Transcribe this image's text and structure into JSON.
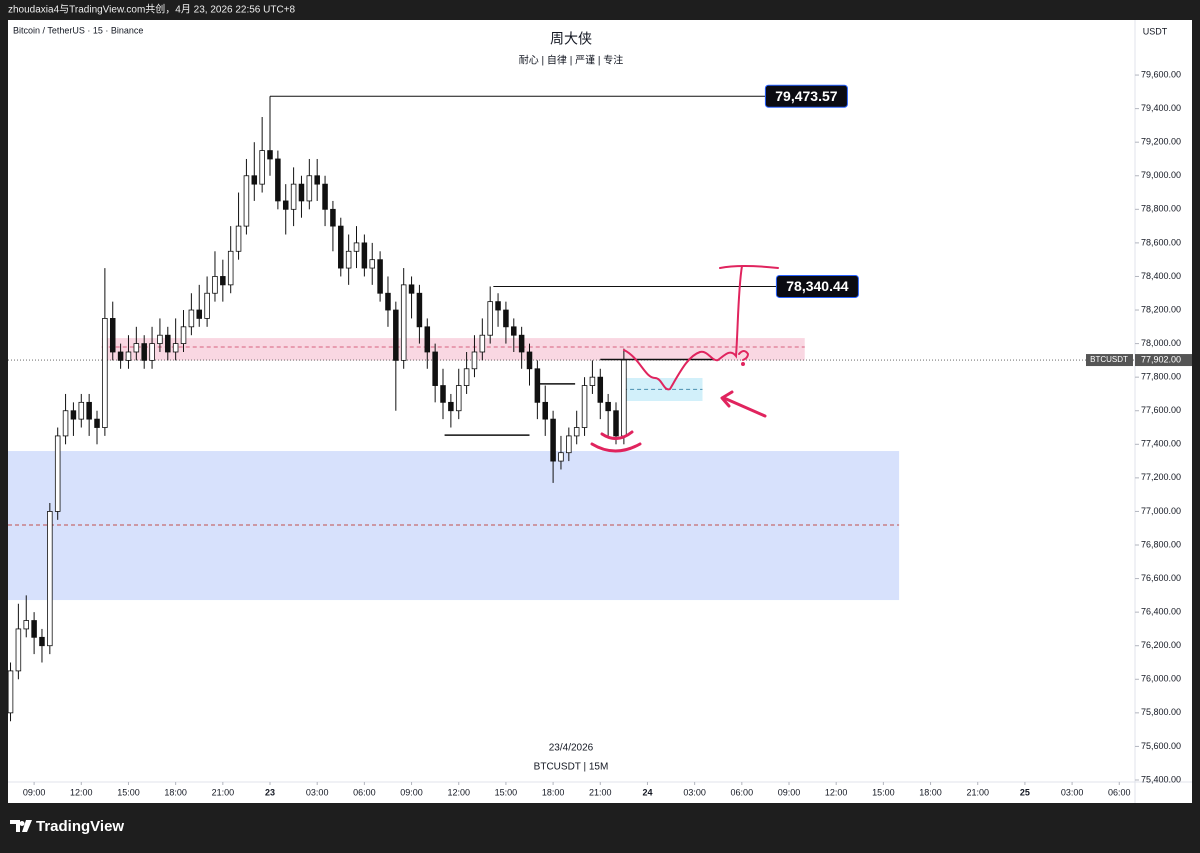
{
  "header": {
    "text": "zhoudaxia4与TradingView.com共创，4月 23, 2026 22:56 UTC+8"
  },
  "footer": {
    "brand": "TradingView"
  },
  "chart_data": {
    "type": "candlestick",
    "symbol_info": "Bitcoin / TetherUS · 15 · Binance",
    "title": "周大侠",
    "subtitle": "耐心 | 自律 | 严谨 | 专注",
    "watermark_date": "23/4/2026",
    "watermark_symbol": "BTCUSDT | 15M",
    "y_unit": "USDT",
    "colors": {
      "up": "#ffffff",
      "down": "#111111",
      "border": "#111111"
    },
    "x": [
      7.5,
      8,
      8.5,
      9,
      9.5,
      10,
      10.5,
      11,
      11.5,
      12,
      12.5,
      13,
      13.5,
      14,
      14.5,
      15,
      15.5,
      16,
      16.5,
      17,
      17.5,
      18,
      18.5,
      19,
      19.5,
      20,
      20.5,
      21,
      21.5,
      22,
      22.5,
      23,
      23.5,
      24,
      24.5,
      25,
      25.5,
      26,
      26.5,
      27,
      27.5,
      28,
      28.5,
      29,
      29.5,
      30,
      30.5,
      31,
      31.5,
      32,
      32.5,
      33,
      33.5,
      34,
      34.5,
      35,
      35.5,
      36,
      36.5,
      37,
      37.5,
      38,
      38.5,
      39,
      39.5,
      40,
      40.5,
      41,
      41.5,
      42,
      42.5,
      43,
      43.5,
      44,
      44.5,
      45,
      45.5,
      46,
      46.5
    ],
    "open": [
      75800,
      76050,
      76300,
      76350,
      76250,
      76200,
      77000,
      77450,
      77600,
      77550,
      77650,
      77550,
      77500,
      78150,
      77950,
      77900,
      77950,
      78000,
      77900,
      78000,
      78050,
      77950,
      78000,
      78100,
      78200,
      78150,
      78300,
      78400,
      78350,
      78550,
      78700,
      79000,
      78950,
      79150,
      79100,
      78850,
      78800,
      78950,
      78850,
      79000,
      78950,
      78800,
      78700,
      78450,
      78550,
      78600,
      78450,
      78500,
      78300,
      78200,
      77900,
      78350,
      78300,
      78100,
      77950,
      77750,
      77650,
      77600,
      77750,
      77850,
      77950,
      78050,
      78250,
      78200,
      78100,
      78050,
      77950,
      77850,
      77650,
      77550,
      77300,
      77350,
      77450,
      77500,
      77750,
      77800,
      77650,
      77600,
      77450
    ],
    "high": [
      76100,
      76450,
      76500,
      76400,
      76300,
      77050,
      77500,
      77700,
      77650,
      77700,
      77700,
      77600,
      78450,
      78250,
      78000,
      78050,
      78100,
      78050,
      78100,
      78150,
      78100,
      78150,
      78200,
      78300,
      78350,
      78400,
      78550,
      78500,
      78700,
      78900,
      79100,
      79200,
      79350,
      79473.57,
      79150,
      78950,
      79050,
      79000,
      79100,
      79100,
      79000,
      78850,
      78750,
      78650,
      78700,
      78650,
      78600,
      78550,
      78400,
      78250,
      78450,
      78400,
      78350,
      78150,
      78000,
      77850,
      77700,
      77850,
      77950,
      78050,
      78150,
      78340.44,
      78300,
      78250,
      78150,
      78100,
      78000,
      77900,
      77750,
      77600,
      77450,
      77500,
      77600,
      77800,
      77900,
      77850,
      77700,
      77650,
      77970
    ],
    "low": [
      75750,
      76000,
      76250,
      76150,
      76100,
      76150,
      76950,
      77400,
      77450,
      77500,
      77450,
      77400,
      77450,
      77900,
      77850,
      77850,
      77900,
      77850,
      77850,
      77950,
      77900,
      77900,
      77950,
      78050,
      78100,
      78100,
      78250,
      78250,
      78300,
      78500,
      78650,
      78850,
      78900,
      79000,
      78800,
      78650,
      78700,
      78750,
      78800,
      78850,
      78700,
      78550,
      78400,
      78350,
      78450,
      78400,
      78350,
      78250,
      78100,
      77600,
      77850,
      78150,
      78000,
      77850,
      77650,
      77550,
      77500,
      77550,
      77700,
      77800,
      77900,
      78000,
      78100,
      78000,
      77950,
      77850,
      77750,
      77550,
      77450,
      77170,
      77250,
      77300,
      77400,
      77450,
      77700,
      77550,
      77450,
      77400,
      77400
    ],
    "close": [
      76050,
      76300,
      76350,
      76250,
      76200,
      77000,
      77450,
      77600,
      77550,
      77650,
      77550,
      77500,
      78150,
      77950,
      77900,
      77950,
      78000,
      77900,
      78000,
      78050,
      77950,
      78000,
      78100,
      78200,
      78150,
      78300,
      78400,
      78350,
      78550,
      78700,
      79000,
      78950,
      79150,
      79100,
      78850,
      78800,
      78950,
      78850,
      79000,
      78950,
      78800,
      78700,
      78450,
      78550,
      78600,
      78450,
      78500,
      78300,
      78200,
      77900,
      78350,
      78300,
      78100,
      77950,
      77750,
      77650,
      77600,
      77750,
      77850,
      77950,
      78050,
      78250,
      78200,
      78100,
      78050,
      77950,
      77850,
      77650,
      77550,
      77300,
      77350,
      77450,
      77500,
      77750,
      77800,
      77650,
      77600,
      77450,
      77902
    ],
    "xlim": [
      7.34,
      79.0
    ],
    "xticks": [
      {
        "value": 9,
        "label": "09:00"
      },
      {
        "value": 12,
        "label": "12:00"
      },
      {
        "value": 15,
        "label": "15:00"
      },
      {
        "value": 18,
        "label": "18:00"
      },
      {
        "value": 21,
        "label": "21:00"
      },
      {
        "value": 24,
        "label": "23"
      },
      {
        "value": 27,
        "label": "03:00"
      },
      {
        "value": 30,
        "label": "06:00"
      },
      {
        "value": 33,
        "label": "09:00"
      },
      {
        "value": 36,
        "label": "12:00"
      },
      {
        "value": 39,
        "label": "15:00"
      },
      {
        "value": 42,
        "label": "18:00"
      },
      {
        "value": 45,
        "label": "21:00"
      },
      {
        "value": 48,
        "label": "24"
      },
      {
        "value": 51,
        "label": "03:00"
      },
      {
        "value": 54,
        "label": "06:00"
      },
      {
        "value": 57,
        "label": "09:00"
      },
      {
        "value": 60,
        "label": "12:00"
      },
      {
        "value": 63,
        "label": "15:00"
      },
      {
        "value": 66,
        "label": "18:00"
      },
      {
        "value": 69,
        "label": "21:00"
      },
      {
        "value": 72,
        "label": "25"
      },
      {
        "value": 75,
        "label": "03:00"
      },
      {
        "value": 78,
        "label": "06:00"
      }
    ],
    "ylim": [
      75388,
      79928
    ],
    "yticks": [
      {
        "value": 75400,
        "label": "75,400.00"
      },
      {
        "value": 75600,
        "label": "75,600.00"
      },
      {
        "value": 75800,
        "label": "75,800.00"
      },
      {
        "value": 76000,
        "label": "76,000.00"
      },
      {
        "value": 76200,
        "label": "76,200.00"
      },
      {
        "value": 76400,
        "label": "76,400.00"
      },
      {
        "value": 76600,
        "label": "76,600.00"
      },
      {
        "value": 76800,
        "label": "76,800.00"
      },
      {
        "value": 77000,
        "label": "77,000.00"
      },
      {
        "value": 77200,
        "label": "77,200.00"
      },
      {
        "value": 77400,
        "label": "77,400.00"
      },
      {
        "value": 77600,
        "label": "77,600.00"
      },
      {
        "value": 77800,
        "label": "77,800.00"
      },
      {
        "value": 78000,
        "label": "78,000.00"
      },
      {
        "value": 78200,
        "label": "78,200.00"
      },
      {
        "value": 78400,
        "label": "78,400.00"
      },
      {
        "value": 78600,
        "label": "78,600.00"
      },
      {
        "value": 78800,
        "label": "78,800.00"
      },
      {
        "value": 79000,
        "label": "79,000.00"
      },
      {
        "value": 79200,
        "label": "79,200.00"
      },
      {
        "value": 79400,
        "label": "79,400.00"
      },
      {
        "value": 79600,
        "label": "79,600.00"
      }
    ],
    "grid": false,
    "last_price": {
      "symbol": "BTCUSDT",
      "value": 77902,
      "label": "77,902.00",
      "color": "#555555"
    },
    "levels": [
      {
        "price": 79473.57,
        "label": "79,473.57",
        "x0": 24,
        "x1": 55.5
      },
      {
        "price": 78340.44,
        "label": "78,340.44",
        "x0": 38.2,
        "x1": 56.2
      }
    ],
    "segments": [
      {
        "price": 77905,
        "x0": 45,
        "x1": 52.3
      },
      {
        "price": 77455,
        "x0": 35.1,
        "x1": 40.5
      },
      {
        "price": 77760,
        "x0": 41,
        "x1": 43.4
      }
    ],
    "zones": [
      {
        "top": 78033,
        "bottom": 77900,
        "mid": 77980,
        "x0": 13.3,
        "x1": 58,
        "color": "#f8d3df",
        "line": "#d6607e"
      },
      {
        "top": 77360,
        "bottom": 76472,
        "mid": 76919,
        "x0": 7.34,
        "x1": 64,
        "color": "#d3defc",
        "line": "#c0504d"
      },
      {
        "top": 77795,
        "bottom": 77658,
        "mid": 77727,
        "x0": 46.45,
        "x1": 51.5,
        "color": "#cdeefa",
        "line": "#4a8fb0"
      }
    ]
  }
}
